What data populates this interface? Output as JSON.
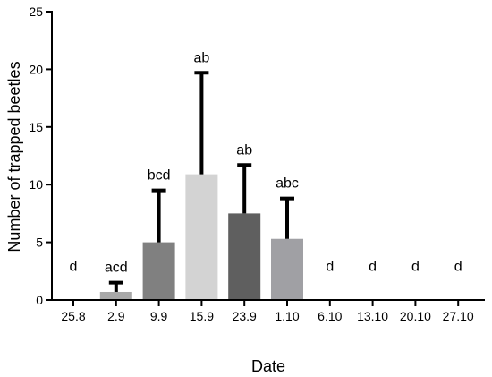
{
  "chart_data": {
    "type": "bar",
    "xlabel": "Date",
    "ylabel": "Number of trapped beetles",
    "ylim": [
      0,
      25
    ],
    "yticks": [
      0,
      5,
      10,
      15,
      20,
      25
    ],
    "categories": [
      "25.8",
      "2.9",
      "9.9",
      "15.9",
      "23.9",
      "1.10",
      "6.10",
      "13.10",
      "20.10",
      "27.10"
    ],
    "values": [
      0,
      0.7,
      5.0,
      10.9,
      7.5,
      5.3,
      0,
      0,
      0,
      0
    ],
    "error_upper": [
      0,
      1.5,
      9.5,
      19.7,
      11.7,
      8.8,
      0,
      0,
      0,
      0
    ],
    "labels": [
      "d",
      "acd",
      "bcd",
      "ab",
      "ab",
      "abc",
      "d",
      "d",
      "d",
      "d"
    ],
    "colors": [
      "#ffffff",
      "#a8a8a8",
      "#808080",
      "#d3d3d3",
      "#5f5f5f",
      "#a0a0a4",
      "#ffffff",
      "#ffffff",
      "#ffffff",
      "#ffffff"
    ],
    "grid": false
  }
}
